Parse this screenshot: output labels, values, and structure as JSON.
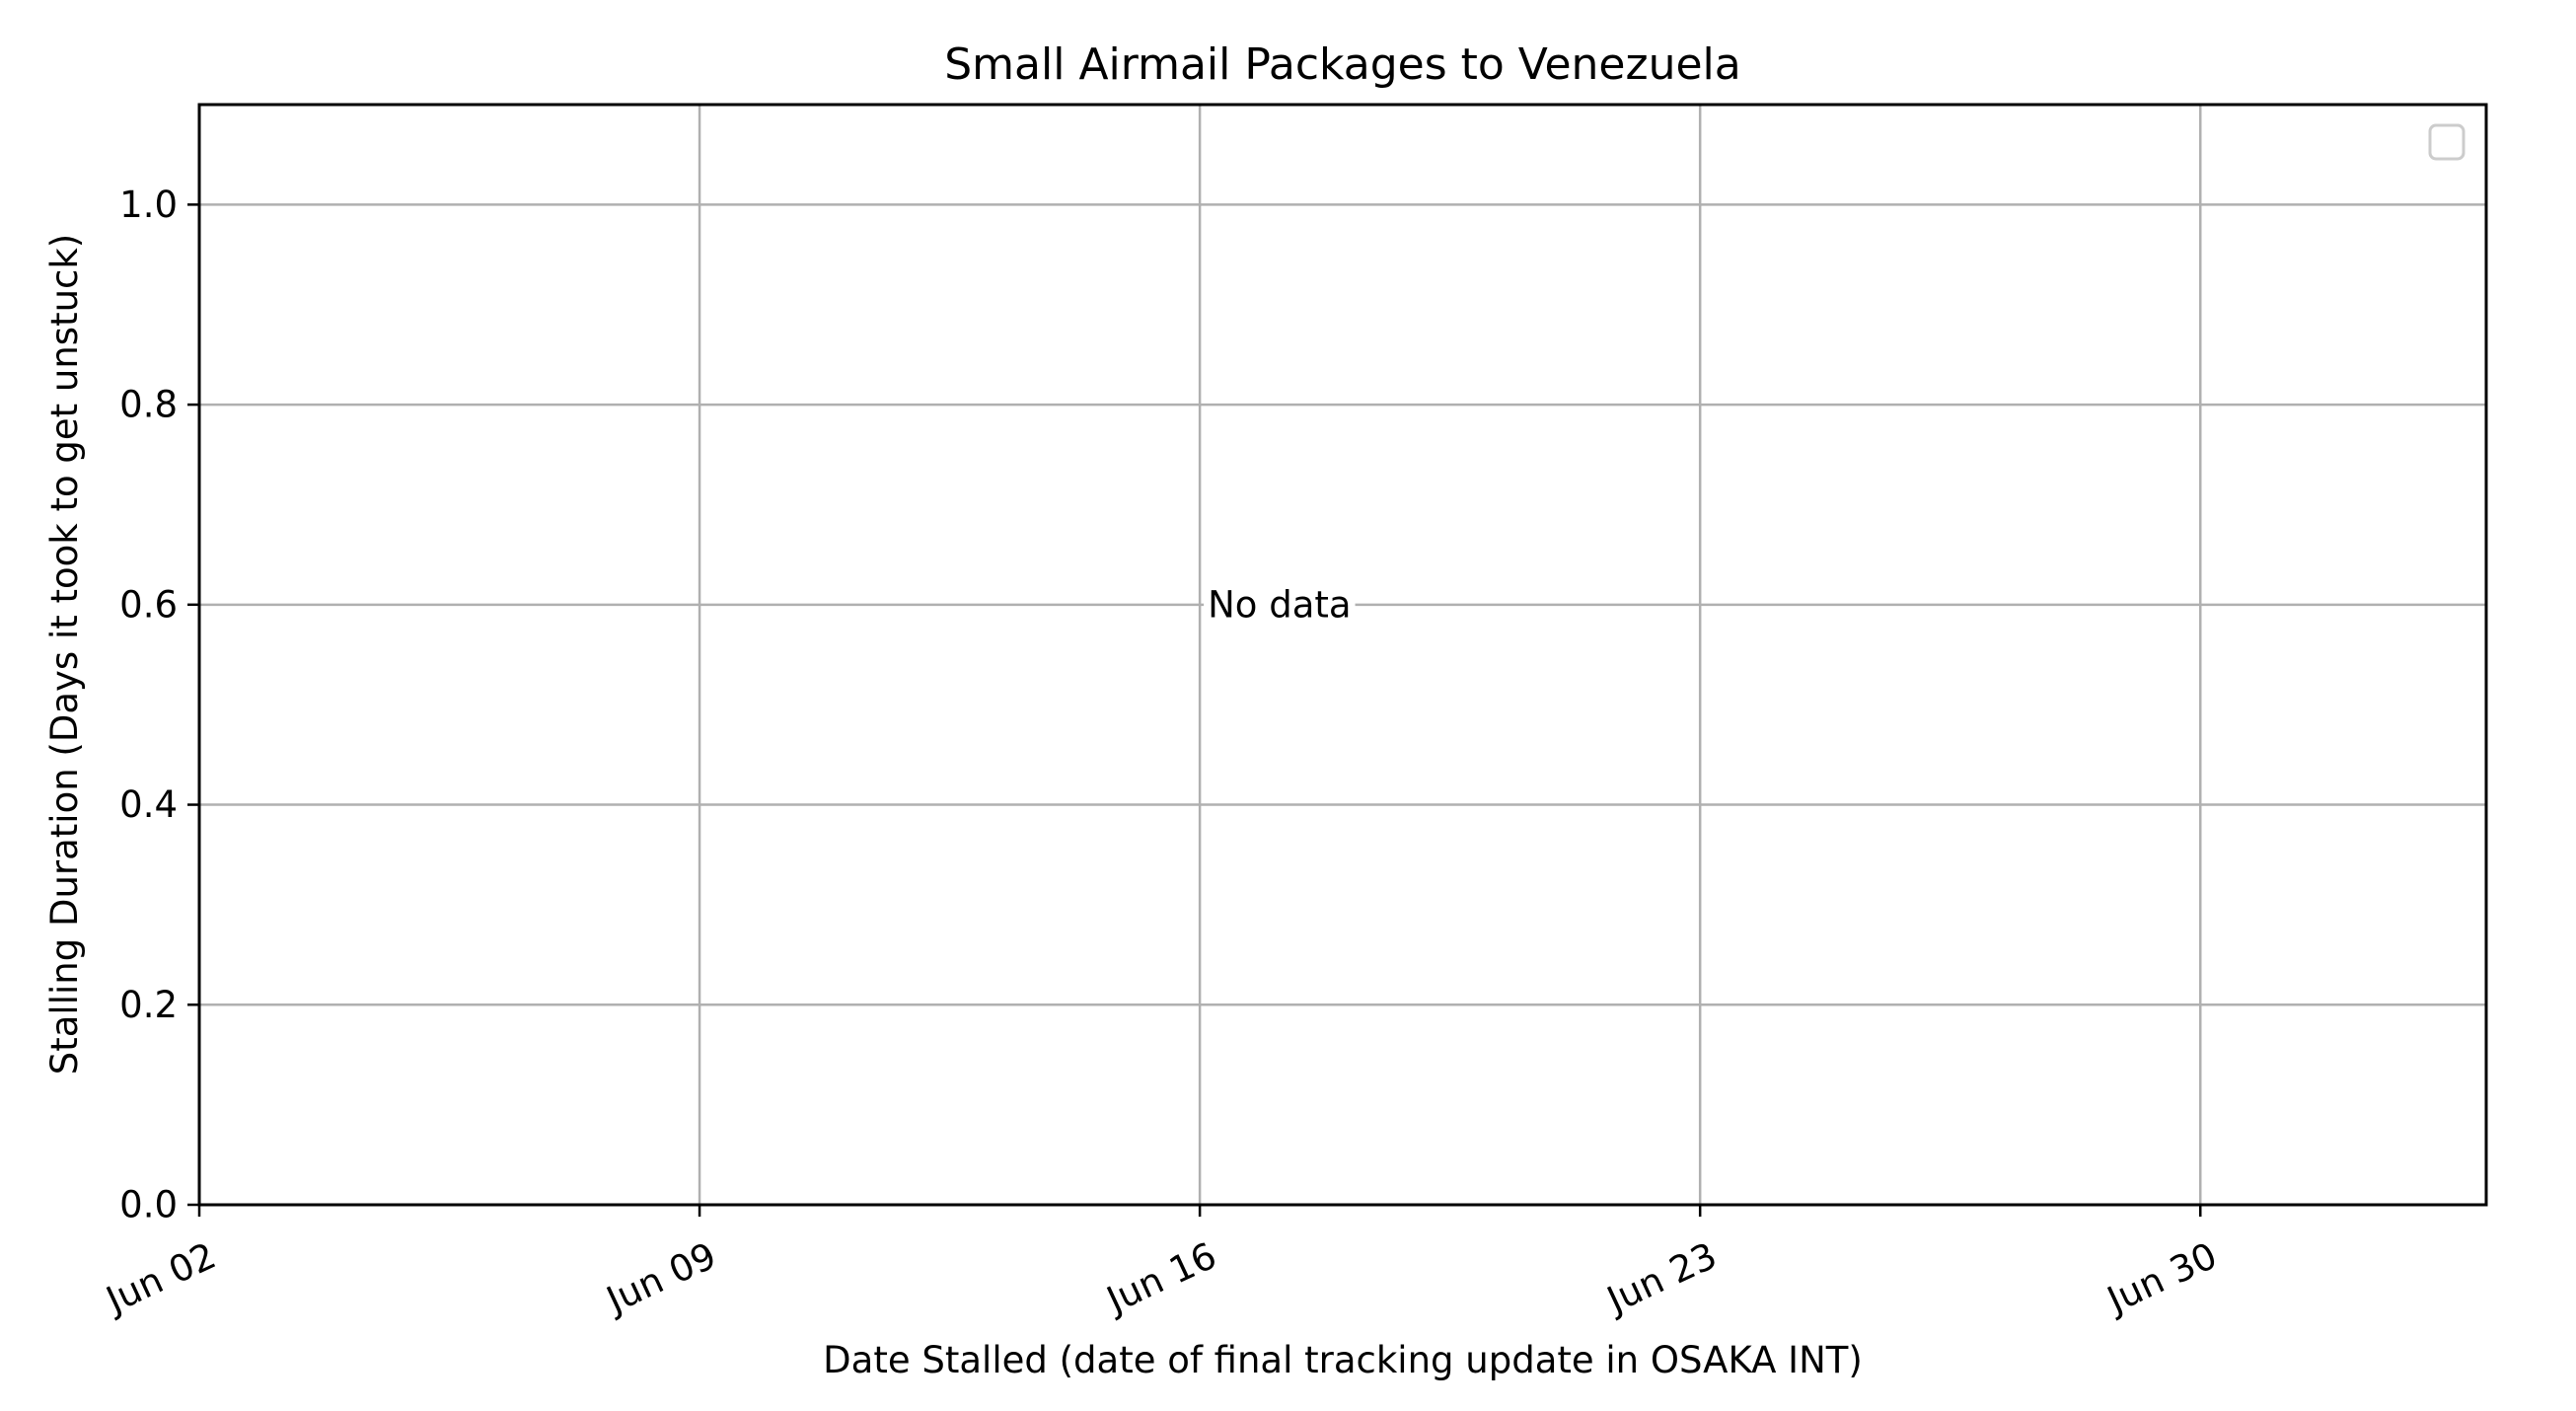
{
  "chart_data": {
    "type": "scatter",
    "title": "Small Airmail Packages to Venezuela",
    "xlabel": "Date Stalled (date of final tracking update in OSAKA INT)",
    "ylabel": "Stalling Duration (Days it took to get unstuck)",
    "x_tick_labels": [
      "Jun 02",
      "Jun 09",
      "Jun 16",
      "Jun 23",
      "Jun 30"
    ],
    "x_tick_dates": [
      "Jun 02",
      "Jun 09",
      "Jun 16",
      "Jun 23",
      "Jun 30"
    ],
    "xlim": [
      "Jun 02",
      "Jul 04"
    ],
    "y_tick_labels": [
      "0.0",
      "0.2",
      "0.4",
      "0.6",
      "0.8",
      "1.0"
    ],
    "y_tick_values": [
      0.0,
      0.2,
      0.4,
      0.6,
      0.8,
      1.0
    ],
    "ylim": [
      0,
      1.1
    ],
    "grid": true,
    "legend": {
      "placement": "top-right",
      "entries": []
    },
    "annotation": {
      "text": "No data",
      "x": "Jun 16",
      "y": 0.6
    },
    "series": []
  }
}
